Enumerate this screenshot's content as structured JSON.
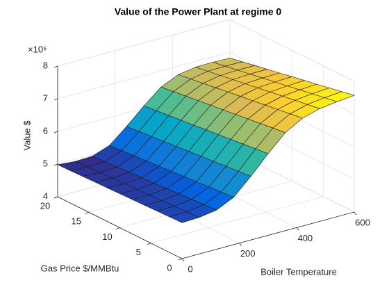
{
  "chart_data": {
    "type": "surface",
    "title": "Value of the Power Plant at regime 0",
    "xlabel": "Boiler Temperature",
    "ylabel": "Gas Price $/MMBtu",
    "zlabel": "Value $",
    "zscale_label": "×10⁵",
    "colormap": "parula",
    "grid": true,
    "xlim": [
      0,
      600
    ],
    "ylim": [
      0,
      20
    ],
    "zlim": [
      400000,
      800000
    ],
    "xticks": [
      0,
      200,
      400,
      600
    ],
    "yticks": [
      0,
      5,
      10,
      15,
      20
    ],
    "zticks": [
      {
        "value": 400000,
        "label": "4"
      },
      {
        "value": 500000,
        "label": "5"
      },
      {
        "value": 600000,
        "label": "6"
      },
      {
        "value": 700000,
        "label": "7"
      },
      {
        "value": 800000,
        "label": "8"
      }
    ],
    "x": [
      0,
      60,
      120,
      180,
      240,
      300,
      360,
      420,
      480,
      540,
      600
    ],
    "y": [
      0,
      2,
      4,
      6,
      8,
      10,
      12,
      14,
      16,
      18,
      20
    ],
    "z": [
      [
        510000,
        512000,
        520000,
        545000,
        595000,
        650000,
        700000,
        730000,
        745000,
        752000,
        757000
      ],
      [
        508800,
        510170,
        517540,
        541910,
        591280,
        645650,
        695020,
        724390,
        738760,
        745130,
        749500
      ],
      [
        507600,
        508340,
        515080,
        538820,
        587560,
        641300,
        690040,
        718780,
        732520,
        738260,
        742000
      ],
      [
        506400,
        506510,
        512620,
        535730,
        583840,
        636950,
        685060,
        713170,
        726280,
        731390,
        734500
      ],
      [
        505200,
        504680,
        510160,
        532640,
        580120,
        632600,
        680080,
        707560,
        720040,
        724520,
        727000
      ],
      [
        504000,
        502850,
        507700,
        529550,
        576400,
        628250,
        675100,
        701950,
        713800,
        717650,
        719500
      ],
      [
        502800,
        501020,
        505240,
        526460,
        572680,
        623900,
        670120,
        696340,
        707560,
        710780,
        712000
      ],
      [
        501600,
        499190,
        502780,
        523370,
        568960,
        619550,
        665140,
        690730,
        701320,
        703910,
        704500
      ],
      [
        500400,
        497360,
        500320,
        520280,
        565240,
        615200,
        660160,
        685120,
        695080,
        697040,
        697000
      ],
      [
        499200,
        495530,
        497860,
        517190,
        561520,
        610850,
        655180,
        679510,
        688840,
        690170,
        689500
      ],
      [
        498000,
        493700,
        495400,
        514100,
        557800,
        606500,
        650200,
        673900,
        682600,
        683300,
        682000
      ]
    ]
  }
}
